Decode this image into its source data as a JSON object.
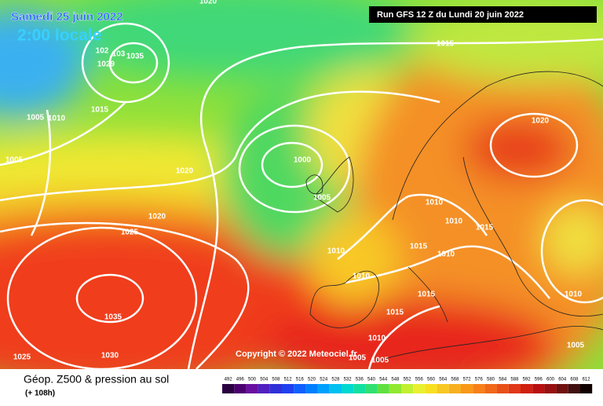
{
  "header": {
    "date": "Samedi 25 juin 2022",
    "time": "2:00 locale",
    "run": "Run GFS 12 Z du Lundi 20 juin 2022"
  },
  "copyright": "Copyright © 2022 Meteociel.fr",
  "legend": {
    "title": "Géop. Z500 & pression au sol",
    "lead": "(+ 108h)",
    "values": [
      492,
      496,
      500,
      504,
      508,
      512,
      516,
      520,
      524,
      528,
      532,
      536,
      540,
      544,
      548,
      552,
      556,
      560,
      564,
      568,
      572,
      576,
      580,
      584,
      588,
      592,
      596,
      600,
      604,
      608,
      612
    ],
    "colors": [
      "#2a0040",
      "#4b0070",
      "#6a10a0",
      "#5020c0",
      "#3030d8",
      "#2040f0",
      "#1060ff",
      "#0080ff",
      "#00a0ff",
      "#00c0f0",
      "#00d8d0",
      "#10e0a0",
      "#30e070",
      "#60e040",
      "#90e830",
      "#c0f030",
      "#e8f030",
      "#f8e020",
      "#f8c820",
      "#f8b020",
      "#f89818",
      "#f88018",
      "#f06818",
      "#e85018",
      "#e03818",
      "#d02010",
      "#b81010",
      "#981010",
      "#701010",
      "#401010",
      "#100000"
    ]
  },
  "isobars": [
    "1020",
    "1015",
    "102",
    "103",
    "1035",
    "1029",
    "1005",
    "1010",
    "1015",
    "1005",
    "1020",
    "1000",
    "1005",
    "1020",
    "1025",
    "1010",
    "1010",
    "1015",
    "1015",
    "1010",
    "1010",
    "1010",
    "1015",
    "1015",
    "1035",
    "1010",
    "1005",
    "1005",
    "1025",
    "1030",
    "1020",
    "1010",
    "1005"
  ]
}
